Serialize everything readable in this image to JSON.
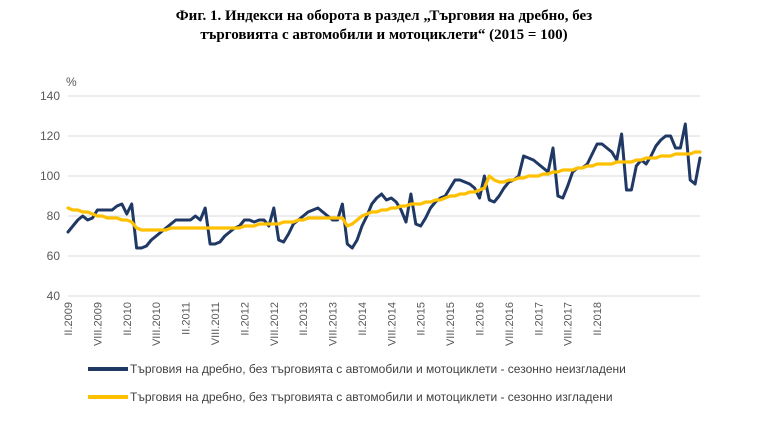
{
  "title_line1": "Фиг. 1. Индекси на оборота в раздел „Търговия на дребно, без",
  "title_line2": "търговията с автомобили и мотоциклети“ (2015 = 100)",
  "chart_data": {
    "type": "line",
    "title": "Фиг. 1. Индекси на оборота в раздел „Търговия на дребно, без търговията с автомобили и мотоциклети“ (2015 = 100)",
    "ylabel": "%",
    "ylim": [
      40,
      140
    ],
    "yticks": [
      40,
      60,
      80,
      100,
      120,
      140
    ],
    "x_start": "2009-02",
    "x_end": "2018-02",
    "x_tick_labels": [
      "II.2009",
      "VIII.2009",
      "II.2010",
      "VIII.2010",
      "II.2011",
      "VIII.2011",
      "II.2012",
      "VIII.2012",
      "II.2013",
      "VIII.2013",
      "II.2014",
      "VIII.2014",
      "II.2015",
      "VIII.2015",
      "II.2016",
      "VIII.2016",
      "II.2017",
      "VIII.2017",
      "II.2018"
    ],
    "grid": "horizontal",
    "legend_position": "bottom",
    "series": [
      {
        "name": "Търговия на дребно, без търговията с автомобили и мотоциклети - сезонно неизгладени",
        "color": "#1f3864",
        "values": [
          72,
          75,
          78,
          80,
          78,
          79,
          83,
          83,
          83,
          83,
          85,
          86,
          81,
          86,
          64,
          64,
          65,
          68,
          70,
          72,
          74,
          76,
          78,
          78,
          78,
          78,
          80,
          78,
          84,
          66,
          66,
          67,
          70,
          72,
          74,
          75,
          78,
          78,
          77,
          78,
          78,
          75,
          84,
          68,
          67,
          71,
          76,
          78,
          80,
          82,
          83,
          84,
          82,
          80,
          78,
          78,
          86,
          66,
          64,
          68,
          75,
          80,
          86,
          89,
          91,
          88,
          89,
          87,
          83,
          77,
          91,
          76,
          75,
          79,
          84,
          87,
          89,
          90,
          94,
          98,
          98,
          97,
          96,
          94,
          89,
          100,
          88,
          87,
          90,
          94,
          97,
          98,
          100,
          110,
          109,
          108,
          106,
          104,
          102,
          114,
          90,
          89,
          95,
          102,
          104,
          104,
          106,
          111,
          116,
          116,
          114,
          112,
          108,
          121,
          93,
          93,
          105,
          108,
          106,
          110,
          115,
          118,
          120,
          120,
          114,
          114,
          126,
          98,
          96,
          109
        ]
      },
      {
        "name": "Търговия на дребно, без търговията с автомобили и мотоциклети - сезонно изгладени",
        "color": "#ffc000",
        "values": [
          84,
          83,
          83,
          82,
          82,
          81,
          80,
          80,
          79,
          79,
          79,
          78,
          78,
          77,
          74,
          73,
          73,
          73,
          73,
          73,
          73,
          74,
          74,
          74,
          74,
          74,
          74,
          74,
          74,
          74,
          74,
          74,
          74,
          74,
          74,
          74,
          75,
          75,
          75,
          76,
          76,
          76,
          76,
          76,
          77,
          77,
          77,
          78,
          78,
          79,
          79,
          79,
          79,
          79,
          79,
          79,
          79,
          75,
          76,
          78,
          80,
          81,
          82,
          82,
          83,
          83,
          84,
          84,
          85,
          85,
          86,
          86,
          86,
          87,
          87,
          88,
          88,
          89,
          90,
          90,
          91,
          91,
          92,
          92,
          93,
          94,
          100,
          98,
          97,
          97,
          98,
          98,
          99,
          99,
          100,
          100,
          100,
          101,
          101,
          102,
          102,
          103,
          103,
          103,
          104,
          104,
          105,
          105,
          106,
          106,
          106,
          106,
          107,
          107,
          107,
          107,
          108,
          108,
          109,
          109,
          109,
          110,
          110,
          110,
          111,
          111,
          111,
          111,
          112,
          112
        ]
      }
    ]
  }
}
